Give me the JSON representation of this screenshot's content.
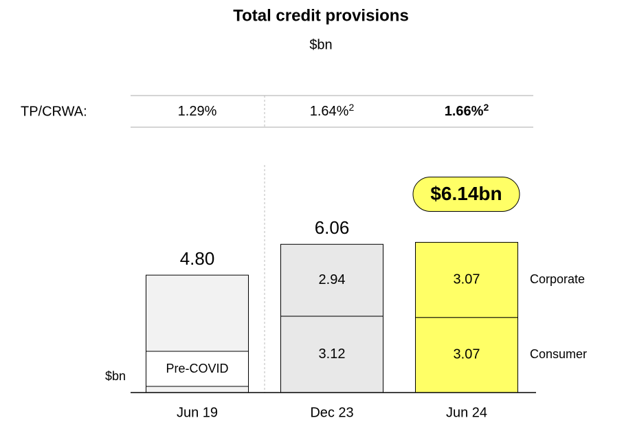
{
  "chart_data": {
    "type": "bar",
    "title": "Total credit provisions",
    "subtitle": "$bn",
    "y_label": "$bn",
    "categories": [
      "Jun 19",
      "Dec 23",
      "Jun 24"
    ],
    "series": [
      {
        "name": "Corporate",
        "values": [
          null,
          2.94,
          3.07
        ]
      },
      {
        "name": "Consumer",
        "values": [
          null,
          3.12,
          3.07
        ]
      }
    ],
    "bar_colors": [
      "#f2f2f2",
      "#e8e8e8",
      "#ffff66"
    ],
    "totals": {
      "values": [
        4.8,
        6.06,
        6.14
      ],
      "value_labels": [
        "4.80",
        "6.06",
        "$6.14bn"
      ]
    },
    "annotation": "Pre-COVID",
    "ratio_row": {
      "label": "TP/CRWA:",
      "values": [
        1.29,
        1.64,
        1.66
      ],
      "value_labels": [
        "1.29%",
        "1.64%",
        "1.66%"
      ],
      "notes": [
        null,
        "2",
        "2"
      ]
    },
    "ylim": [
      0,
      9.3
    ]
  }
}
